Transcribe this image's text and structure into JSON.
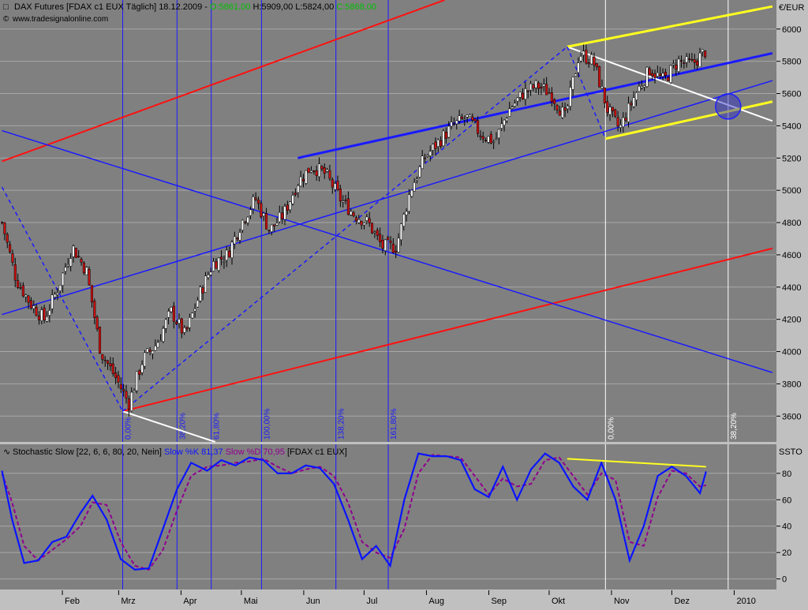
{
  "main_header": {
    "instrument": "DAX Futures [FDAX c1 EUX  Täglich] 18.12.2009 - ",
    "open": "O:5861,00",
    "high_low": " H:5909,00 L:5824,00 ",
    "close": "C:5868,00",
    "credit": "www.tradesignalonline.com"
  },
  "stoch_header": {
    "name": "Stochastic Slow [22, 6, 6, 80, 20, Nein]",
    "k": "Slow %K 81,37",
    "d": "Slow %D 70,95",
    "source": "[FDAX c1 EUX]"
  },
  "colors": {
    "background": "#808080",
    "candle_up": "#ffffff",
    "candle_down": "#d01010",
    "blue_line": "#1a1aff",
    "red_line": "#ff1010",
    "yellow_line": "#ffff20",
    "white_line": "#ffffff",
    "k_line": "#0a14ff",
    "d_line": "#900090"
  },
  "chart_data": [
    {
      "type": "candlestick",
      "title": "DAX Futures [FDAX c1 EUX Täglich]",
      "y_unit": "€/EUR",
      "ylim": [
        3440,
        6180
      ],
      "y_ticks": [
        3600,
        3800,
        4000,
        4200,
        4400,
        4600,
        4800,
        5000,
        5200,
        5400,
        5600,
        5800,
        6000
      ],
      "x_month_labels": [
        "Feb",
        "Mrz",
        "Apr",
        "Mai",
        "Jun",
        "Jul",
        "Aug",
        "Sep",
        "Okt",
        "Nov",
        "Dez",
        "2010"
      ],
      "grid": true,
      "price_path": [
        {
          "date": "2009-01-02",
          "close": 4800
        },
        {
          "date": "2009-01-09",
          "close": 4450
        },
        {
          "date": "2009-01-16",
          "close": 4300
        },
        {
          "date": "2009-01-23",
          "close": 4200
        },
        {
          "date": "2009-01-30",
          "close": 4400
        },
        {
          "date": "2009-02-06",
          "close": 4650
        },
        {
          "date": "2009-02-13",
          "close": 4500
        },
        {
          "date": "2009-02-20",
          "close": 4000
        },
        {
          "date": "2009-02-27",
          "close": 3850
        },
        {
          "date": "2009-03-06",
          "close": 3680
        },
        {
          "date": "2009-03-13",
          "close": 3950
        },
        {
          "date": "2009-03-20",
          "close": 4050
        },
        {
          "date": "2009-03-27",
          "close": 4250
        },
        {
          "date": "2009-04-03",
          "close": 4100
        },
        {
          "date": "2009-04-10",
          "close": 4350
        },
        {
          "date": "2009-04-17",
          "close": 4550
        },
        {
          "date": "2009-04-24",
          "close": 4600
        },
        {
          "date": "2009-05-01",
          "close": 4800
        },
        {
          "date": "2009-05-08",
          "close": 4950
        },
        {
          "date": "2009-05-15",
          "close": 4750
        },
        {
          "date": "2009-05-22",
          "close": 4850
        },
        {
          "date": "2009-05-29",
          "close": 5050
        },
        {
          "date": "2009-06-05",
          "close": 5150
        },
        {
          "date": "2009-06-12",
          "close": 5100
        },
        {
          "date": "2009-06-19",
          "close": 4950
        },
        {
          "date": "2009-06-26",
          "close": 4850
        },
        {
          "date": "2009-07-03",
          "close": 4800
        },
        {
          "date": "2009-07-10",
          "close": 4650
        },
        {
          "date": "2009-07-17",
          "close": 4650
        },
        {
          "date": "2009-07-24",
          "close": 5000
        },
        {
          "date": "2009-07-31",
          "close": 5200
        },
        {
          "date": "2009-08-07",
          "close": 5300
        },
        {
          "date": "2009-08-14",
          "close": 5400
        },
        {
          "date": "2009-08-21",
          "close": 5450
        },
        {
          "date": "2009-08-28",
          "close": 5350
        },
        {
          "date": "2009-09-04",
          "close": 5300
        },
        {
          "date": "2009-09-11",
          "close": 5500
        },
        {
          "date": "2009-09-18",
          "close": 5600
        },
        {
          "date": "2009-09-25",
          "close": 5650
        },
        {
          "date": "2009-10-02",
          "close": 5600
        },
        {
          "date": "2009-10-09",
          "close": 5450
        },
        {
          "date": "2009-10-16",
          "close": 5850
        },
        {
          "date": "2009-10-23",
          "close": 5800
        },
        {
          "date": "2009-10-30",
          "close": 5500
        },
        {
          "date": "2009-11-05",
          "close": 5380
        },
        {
          "date": "2009-11-13",
          "close": 5600
        },
        {
          "date": "2009-11-20",
          "close": 5750
        },
        {
          "date": "2009-11-27",
          "close": 5680
        },
        {
          "date": "2009-12-04",
          "close": 5800
        },
        {
          "date": "2009-12-11",
          "close": 5780
        },
        {
          "date": "2009-12-18",
          "close": 5868
        }
      ],
      "last_bar": {
        "date": "2009-12-18",
        "open": 5861,
        "high": 5909,
        "low": 5824,
        "close": 5868
      },
      "fib_time_lines": [
        {
          "date": "2009-03-03",
          "label": "0,00%"
        },
        {
          "date": "2009-03-30",
          "label": "38,20%"
        },
        {
          "date": "2009-04-16",
          "label": "61,80%"
        },
        {
          "date": "2009-05-11",
          "label": "100,00%"
        },
        {
          "date": "2009-06-17",
          "label": "138,20%"
        },
        {
          "date": "2009-07-13",
          "label": "161,80%"
        },
        {
          "date": "2009-10-29",
          "label": "0,00%"
        },
        {
          "date": "2009-12-29",
          "label": "38,20%"
        }
      ],
      "trend_lines": [
        {
          "color": "red",
          "from": {
            "date": "2009-01-02",
            "price": 5180
          },
          "to": {
            "date": "2009-08-10",
            "price": 6180
          }
        },
        {
          "color": "red",
          "from": {
            "date": "2009-03-03",
            "price": 3630
          },
          "to": {
            "date": "2010-01-20",
            "price": 4640
          }
        },
        {
          "color": "blue",
          "from": {
            "date": "2009-01-02",
            "price": 5370
          },
          "to": {
            "date": "2010-01-20",
            "price": 3870
          }
        },
        {
          "color": "blue",
          "from": {
            "date": "2009-01-02",
            "price": 4230
          },
          "to": {
            "date": "2010-01-20",
            "price": 5680
          }
        },
        {
          "color": "blue",
          "from": {
            "date": "2009-05-29",
            "price": 5200
          },
          "to": {
            "date": "2010-01-20",
            "price": 5850
          }
        },
        {
          "color": "white",
          "from": {
            "date": "2009-03-03",
            "price": 3630
          },
          "to": {
            "date": "2009-04-18",
            "price": 3440
          }
        },
        {
          "color": "white",
          "from": {
            "date": "2009-10-10",
            "price": 5890
          },
          "to": {
            "date": "2010-01-20",
            "price": 5430
          }
        },
        {
          "color": "yellow",
          "from": {
            "date": "2009-10-10",
            "price": 5890
          },
          "to": {
            "date": "2010-01-20",
            "price": 6140
          }
        },
        {
          "color": "yellow",
          "from": {
            "date": "2009-10-29",
            "price": 5320
          },
          "to": {
            "date": "2010-01-20",
            "price": 5550
          }
        }
      ],
      "dashed_lines": [
        {
          "from": {
            "date": "2009-01-02",
            "price": 5020
          },
          "to": {
            "date": "2009-03-03",
            "price": 3630
          }
        },
        {
          "from": {
            "date": "2009-03-03",
            "price": 3630
          },
          "to": {
            "date": "2009-10-10",
            "price": 5890
          }
        },
        {
          "from": {
            "date": "2009-10-10",
            "price": 5890
          },
          "to": {
            "date": "2009-10-29",
            "price": 5320
          }
        }
      ],
      "marker_circle": {
        "date": "2009-12-29",
        "price": 5520
      }
    },
    {
      "type": "line",
      "title": "Stochastic Slow [22, 6, 6, 80, 20, Nein]",
      "y_unit": "SSTO",
      "ylim": [
        -8,
        102
      ],
      "y_ticks": [
        0,
        20,
        40,
        60,
        80
      ],
      "series": [
        {
          "name": "Slow %K",
          "values": [
            {
              "date": "2009-01-02",
              "value": 82
            },
            {
              "date": "2009-01-07",
              "value": 45
            },
            {
              "date": "2009-01-13",
              "value": 12
            },
            {
              "date": "2009-01-20",
              "value": 14
            },
            {
              "date": "2009-01-27",
              "value": 28
            },
            {
              "date": "2009-02-03",
              "value": 32
            },
            {
              "date": "2009-02-10",
              "value": 50
            },
            {
              "date": "2009-02-16",
              "value": 63
            },
            {
              "date": "2009-02-23",
              "value": 45
            },
            {
              "date": "2009-03-02",
              "value": 15
            },
            {
              "date": "2009-03-09",
              "value": 7
            },
            {
              "date": "2009-03-16",
              "value": 8
            },
            {
              "date": "2009-03-23",
              "value": 38
            },
            {
              "date": "2009-03-30",
              "value": 68
            },
            {
              "date": "2009-04-06",
              "value": 88
            },
            {
              "date": "2009-04-14",
              "value": 82
            },
            {
              "date": "2009-04-21",
              "value": 90
            },
            {
              "date": "2009-04-28",
              "value": 86
            },
            {
              "date": "2009-05-05",
              "value": 92
            },
            {
              "date": "2009-05-12",
              "value": 90
            },
            {
              "date": "2009-05-19",
              "value": 80
            },
            {
              "date": "2009-05-26",
              "value": 80
            },
            {
              "date": "2009-06-02",
              "value": 86
            },
            {
              "date": "2009-06-09",
              "value": 84
            },
            {
              "date": "2009-06-16",
              "value": 72
            },
            {
              "date": "2009-06-23",
              "value": 45
            },
            {
              "date": "2009-06-30",
              "value": 15
            },
            {
              "date": "2009-07-07",
              "value": 25
            },
            {
              "date": "2009-07-14",
              "value": 10
            },
            {
              "date": "2009-07-21",
              "value": 60
            },
            {
              "date": "2009-07-28",
              "value": 95
            },
            {
              "date": "2009-08-04",
              "value": 93
            },
            {
              "date": "2009-08-11",
              "value": 93
            },
            {
              "date": "2009-08-18",
              "value": 90
            },
            {
              "date": "2009-08-25",
              "value": 68
            },
            {
              "date": "2009-09-01",
              "value": 62
            },
            {
              "date": "2009-09-08",
              "value": 85
            },
            {
              "date": "2009-09-15",
              "value": 60
            },
            {
              "date": "2009-09-22",
              "value": 83
            },
            {
              "date": "2009-09-29",
              "value": 95
            },
            {
              "date": "2009-10-06",
              "value": 88
            },
            {
              "date": "2009-10-13",
              "value": 70
            },
            {
              "date": "2009-10-20",
              "value": 60
            },
            {
              "date": "2009-10-27",
              "value": 88
            },
            {
              "date": "2009-11-03",
              "value": 60
            },
            {
              "date": "2009-11-10",
              "value": 14
            },
            {
              "date": "2009-11-17",
              "value": 40
            },
            {
              "date": "2009-11-24",
              "value": 78
            },
            {
              "date": "2009-12-01",
              "value": 85
            },
            {
              "date": "2009-12-08",
              "value": 78
            },
            {
              "date": "2009-12-15",
              "value": 65
            },
            {
              "date": "2009-12-18",
              "value": 81.37
            }
          ]
        },
        {
          "name": "Slow %D",
          "values": [
            {
              "date": "2009-01-02",
              "value": 80
            },
            {
              "date": "2009-01-07",
              "value": 58
            },
            {
              "date": "2009-01-13",
              "value": 25
            },
            {
              "date": "2009-01-20",
              "value": 14
            },
            {
              "date": "2009-01-27",
              "value": 22
            },
            {
              "date": "2009-02-03",
              "value": 30
            },
            {
              "date": "2009-02-10",
              "value": 40
            },
            {
              "date": "2009-02-16",
              "value": 58
            },
            {
              "date": "2009-02-23",
              "value": 56
            },
            {
              "date": "2009-03-02",
              "value": 28
            },
            {
              "date": "2009-03-09",
              "value": 10
            },
            {
              "date": "2009-03-16",
              "value": 7
            },
            {
              "date": "2009-03-23",
              "value": 22
            },
            {
              "date": "2009-03-30",
              "value": 52
            },
            {
              "date": "2009-04-06",
              "value": 78
            },
            {
              "date": "2009-04-14",
              "value": 85
            },
            {
              "date": "2009-04-21",
              "value": 86
            },
            {
              "date": "2009-04-28",
              "value": 88
            },
            {
              "date": "2009-05-05",
              "value": 89
            },
            {
              "date": "2009-05-12",
              "value": 91
            },
            {
              "date": "2009-05-19",
              "value": 85
            },
            {
              "date": "2009-05-26",
              "value": 80
            },
            {
              "date": "2009-06-02",
              "value": 83
            },
            {
              "date": "2009-06-09",
              "value": 85
            },
            {
              "date": "2009-06-16",
              "value": 78
            },
            {
              "date": "2009-06-23",
              "value": 58
            },
            {
              "date": "2009-06-30",
              "value": 28
            },
            {
              "date": "2009-07-07",
              "value": 20
            },
            {
              "date": "2009-07-14",
              "value": 16
            },
            {
              "date": "2009-07-21",
              "value": 38
            },
            {
              "date": "2009-07-28",
              "value": 80
            },
            {
              "date": "2009-08-04",
              "value": 94
            },
            {
              "date": "2009-08-11",
              "value": 93
            },
            {
              "date": "2009-08-18",
              "value": 92
            },
            {
              "date": "2009-08-25",
              "value": 78
            },
            {
              "date": "2009-09-01",
              "value": 64
            },
            {
              "date": "2009-09-08",
              "value": 76
            },
            {
              "date": "2009-09-15",
              "value": 70
            },
            {
              "date": "2009-09-22",
              "value": 72
            },
            {
              "date": "2009-09-29",
              "value": 90
            },
            {
              "date": "2009-10-06",
              "value": 92
            },
            {
              "date": "2009-10-13",
              "value": 78
            },
            {
              "date": "2009-10-20",
              "value": 64
            },
            {
              "date": "2009-10-27",
              "value": 80
            },
            {
              "date": "2009-11-03",
              "value": 75
            },
            {
              "date": "2009-11-10",
              "value": 28
            },
            {
              "date": "2009-11-17",
              "value": 25
            },
            {
              "date": "2009-11-24",
              "value": 62
            },
            {
              "date": "2009-12-01",
              "value": 82
            },
            {
              "date": "2009-12-08",
              "value": 80
            },
            {
              "date": "2009-12-15",
              "value": 70
            },
            {
              "date": "2009-12-18",
              "value": 70.95
            }
          ]
        }
      ],
      "divergence_line": {
        "from": {
          "date": "2009-10-10",
          "value": 91
        },
        "to": {
          "date": "2009-12-18",
          "value": 85
        }
      }
    }
  ]
}
